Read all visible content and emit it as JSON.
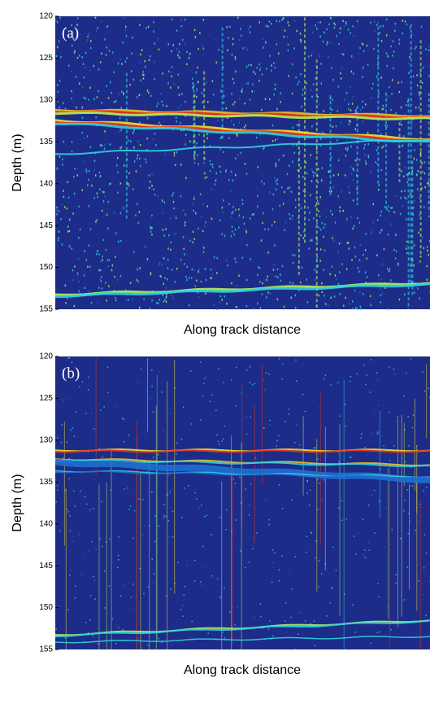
{
  "chart_data": [
    {
      "type": "image",
      "label": "(a)",
      "ylabel": "Depth (m)",
      "xlabel": "Along track distance",
      "ylim": [
        120,
        155
      ],
      "yticks": [
        120,
        125,
        130,
        135,
        140,
        145,
        150,
        155
      ],
      "y_inverted": true
    },
    {
      "type": "image",
      "label": "(b)",
      "ylabel": "Depth (m)",
      "xlabel": "Along track distance",
      "ylim": [
        120,
        155
      ],
      "yticks": [
        120,
        125,
        130,
        135,
        140,
        145,
        150,
        155
      ],
      "y_inverted": true
    }
  ]
}
